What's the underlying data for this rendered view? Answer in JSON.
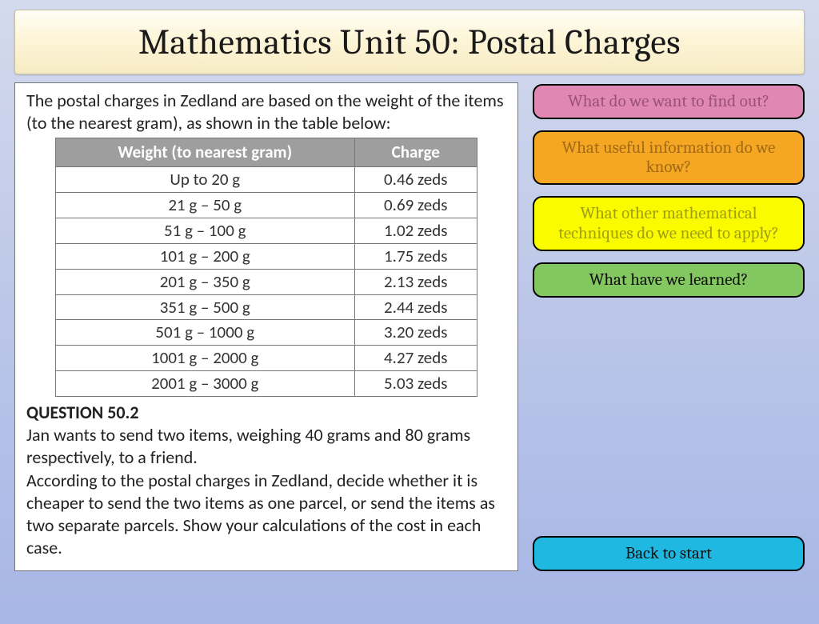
{
  "title": "Mathematics Unit 50: Postal Charges",
  "intro": "The postal charges in Zedland are based on the weight of the items (to the nearest gram), as shown in the table below:",
  "table": {
    "header_weight": "Weight (to nearest gram)",
    "header_charge": "Charge",
    "rows": [
      {
        "w": "Up to 20 g",
        "c": "0.46 zeds"
      },
      {
        "w": "21 g – 50 g",
        "c": "0.69 zeds"
      },
      {
        "w": "51 g – 100 g",
        "c": "1.02 zeds"
      },
      {
        "w": "101 g – 200 g",
        "c": "1.75 zeds"
      },
      {
        "w": "201 g – 350 g",
        "c": "2.13 zeds"
      },
      {
        "w": "351 g – 500 g",
        "c": "2.44 zeds"
      },
      {
        "w": "501 g – 1000 g",
        "c": "3.20 zeds"
      },
      {
        "w": "1001 g – 2000 g",
        "c": "4.27 zeds"
      },
      {
        "w": "2001 g – 3000 g",
        "c": "5.03 zeds"
      }
    ]
  },
  "question_label": "QUESTION 50.2",
  "question_p1": "Jan wants to send two items, weighing 40 grams and 80 grams respectively, to a friend.",
  "question_p2": "According to the postal charges in Zedland, decide whether it is cheaper to send the two items as one parcel, or send the items as two separate parcels. Show your calculations of the cost in each case.",
  "buttons": {
    "b1": "What do we want to find out?",
    "b2": "What useful information do we know?",
    "b3": "What other mathematical techniques do we need to apply?",
    "b4": "What have we learned?",
    "back": "Back to start"
  },
  "colors": {
    "pink": "#e187b3",
    "orange": "#f5a623",
    "yellow": "#fbfb00",
    "green": "#82c760",
    "blue": "#1fb8e0",
    "title_grad_top": "#fffef7",
    "title_grad_bot": "#f7ebc3",
    "bg_top": "#d4daed",
    "bg_bot": "#a8b6e6"
  }
}
